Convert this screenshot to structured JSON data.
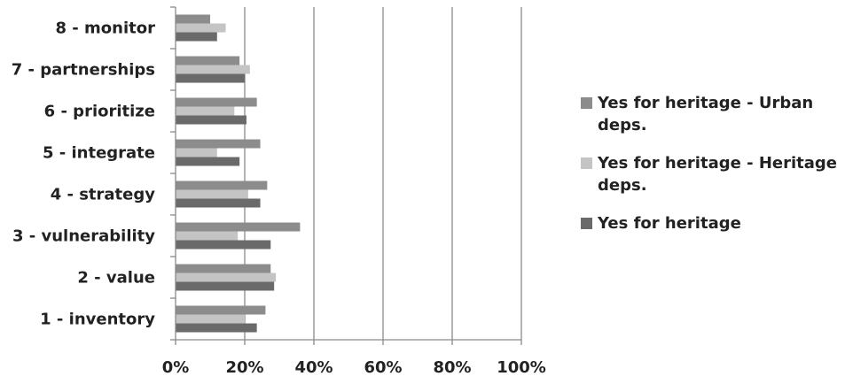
{
  "chart_data": {
    "type": "bar",
    "orientation": "horizontal",
    "categories": [
      "1 - inventory",
      "2 - value",
      "3 - vulnerability",
      "4 - strategy",
      "5 - integrate",
      "6 - prioritize",
      "7 - partnerships",
      "8 - monitor"
    ],
    "series": [
      {
        "name": "Yes for heritage - Urban deps.",
        "color": "#8c8c8c",
        "values": [
          26,
          27.5,
          36,
          26.5,
          24.5,
          23.5,
          18.5,
          10
        ]
      },
      {
        "name": "Yes for heritage - Heritage deps.",
        "color": "#c4c4c4",
        "values": [
          20,
          29,
          18,
          21,
          12,
          17,
          21.5,
          14.5
        ]
      },
      {
        "name": "Yes for heritage",
        "color": "#6a6a6a",
        "values": [
          23.5,
          28.5,
          27.5,
          24.5,
          18.5,
          20.5,
          20,
          12
        ]
      }
    ],
    "xticks": [
      "0%",
      "20%",
      "40%",
      "60%",
      "80%",
      "100%"
    ],
    "xlim": [
      0,
      100
    ],
    "grid": true,
    "legend_position": "right"
  }
}
